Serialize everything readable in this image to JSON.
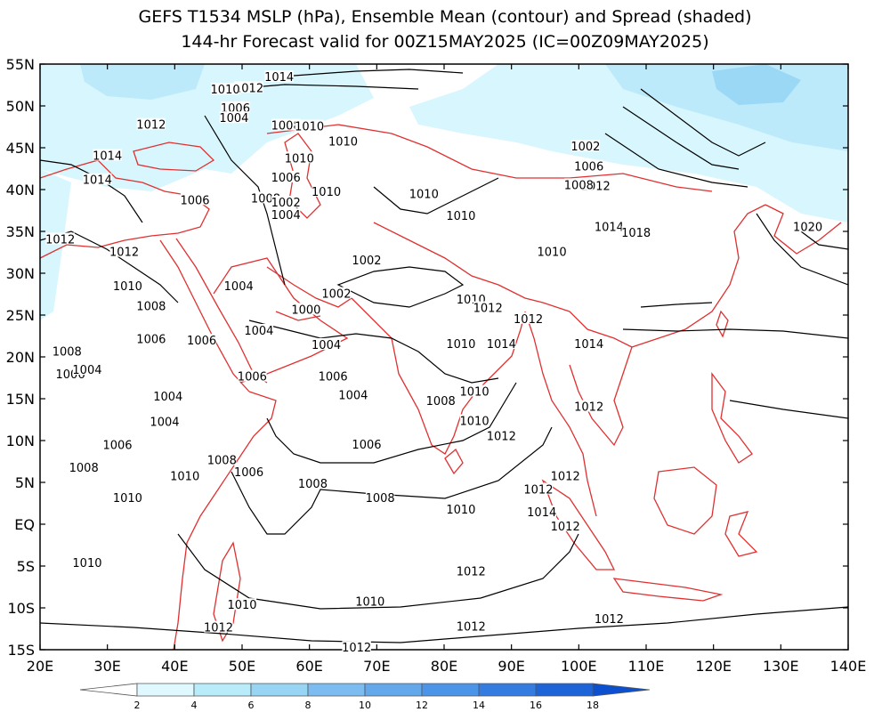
{
  "title_line1": "GEFS T1534 MSLP (hPa), Ensemble Mean (contour) and Spread (shaded)",
  "title_line2": "144-hr Forecast valid for 00Z15MAY2025 (IC=00Z09MAY2025)",
  "map": {
    "lon_range": [
      20,
      140
    ],
    "lat_range": [
      -15,
      55
    ],
    "lon_ticks": [
      "20E",
      "30E",
      "40E",
      "50E",
      "60E",
      "70E",
      "80E",
      "90E",
      "100E",
      "110E",
      "120E",
      "130E",
      "140E"
    ],
    "lat_ticks": [
      "55N",
      "50N",
      "45N",
      "40N",
      "35N",
      "30N",
      "25N",
      "20N",
      "15N",
      "10N",
      "5N",
      "EQ",
      "5S",
      "10S",
      "15S"
    ],
    "coastline_color": "#e03030",
    "contour_color": "#000000"
  },
  "colorbar": {
    "labels": [
      "2",
      "4",
      "6",
      "8",
      "10",
      "12",
      "14",
      "16",
      "18"
    ],
    "colors": [
      "#ffffff",
      "#e0f8ff",
      "#b8ecfa",
      "#98d4f4",
      "#7cbcf0",
      "#64a8ec",
      "#4c94e8",
      "#347ce0",
      "#1c64d8",
      "#0c50d0"
    ]
  },
  "contour_labels": [
    {
      "text": "1014",
      "lon": 55.5,
      "lat": 53.5
    },
    {
      "text": "1012",
      "lon": 51,
      "lat": 52.2
    },
    {
      "text": "1010",
      "lon": 47.5,
      "lat": 52
    },
    {
      "text": "1006",
      "lon": 49,
      "lat": 49.8
    },
    {
      "text": "1004",
      "lon": 48.8,
      "lat": 48.6
    },
    {
      "text": "1008",
      "lon": 56.5,
      "lat": 47.7
    },
    {
      "text": "1010",
      "lon": 60,
      "lat": 47.6
    },
    {
      "text": "1010",
      "lon": 58.5,
      "lat": 43.8
    },
    {
      "text": "1006",
      "lon": 56.5,
      "lat": 41.5
    },
    {
      "text": "1010",
      "lon": 65,
      "lat": 45.8
    },
    {
      "text": "1012",
      "lon": 36.5,
      "lat": 47.8
    },
    {
      "text": "1014",
      "lon": 30,
      "lat": 44.1
    },
    {
      "text": "1014",
      "lon": 28.5,
      "lat": 41.2
    },
    {
      "text": "1012",
      "lon": 23,
      "lat": 34.1
    },
    {
      "text": "1012",
      "lon": 32.5,
      "lat": 32.6
    },
    {
      "text": "1010",
      "lon": 33,
      "lat": 28.5
    },
    {
      "text": "1008",
      "lon": 36.5,
      "lat": 26.1
    },
    {
      "text": "1006",
      "lon": 43,
      "lat": 38.8
    },
    {
      "text": "1008",
      "lon": 53.5,
      "lat": 39
    },
    {
      "text": "1002",
      "lon": 56.5,
      "lat": 38.5
    },
    {
      "text": "1004",
      "lon": 56.5,
      "lat": 37
    },
    {
      "text": "1004",
      "lon": 49.5,
      "lat": 28.5
    },
    {
      "text": "1010",
      "lon": 62.5,
      "lat": 39.8
    },
    {
      "text": "1002",
      "lon": 64,
      "lat": 27.6
    },
    {
      "text": "1002",
      "lon": 68.5,
      "lat": 31.6
    },
    {
      "text": "1000",
      "lon": 59.5,
      "lat": 25.7
    },
    {
      "text": "1004",
      "lon": 52.5,
      "lat": 23.2
    },
    {
      "text": "1004",
      "lon": 62.5,
      "lat": 21.5
    },
    {
      "text": "1006",
      "lon": 36.5,
      "lat": 22.2
    },
    {
      "text": "1006",
      "lon": 44,
      "lat": 22
    },
    {
      "text": "1008",
      "lon": 24,
      "lat": 20.7
    },
    {
      "text": "1006",
      "lon": 24.5,
      "lat": 18
    },
    {
      "text": "1004",
      "lon": 27,
      "lat": 18.5
    },
    {
      "text": "1004",
      "lon": 39,
      "lat": 15.3
    },
    {
      "text": "1004",
      "lon": 38.5,
      "lat": 12.3
    },
    {
      "text": "1006",
      "lon": 51.5,
      "lat": 17.7
    },
    {
      "text": "1006",
      "lon": 63.5,
      "lat": 17.7
    },
    {
      "text": "1004",
      "lon": 66.5,
      "lat": 15.5
    },
    {
      "text": "1008",
      "lon": 47,
      "lat": 7.7
    },
    {
      "text": "1006",
      "lon": 51,
      "lat": 6.3
    },
    {
      "text": "1010",
      "lon": 41.5,
      "lat": 5.8
    },
    {
      "text": "1006",
      "lon": 31.5,
      "lat": 9.5
    },
    {
      "text": "1008",
      "lon": 26.5,
      "lat": 6.8
    },
    {
      "text": "1010",
      "lon": 33,
      "lat": 3.2
    },
    {
      "text": "1010",
      "lon": 27,
      "lat": -4.6
    },
    {
      "text": "1006",
      "lon": 68.5,
      "lat": 9.6
    },
    {
      "text": "1008",
      "lon": 60.5,
      "lat": 4.9
    },
    {
      "text": "1008",
      "lon": 70.5,
      "lat": 3.2
    },
    {
      "text": "1010",
      "lon": 50,
      "lat": -9.6
    },
    {
      "text": "1010",
      "lon": 69,
      "lat": -9.2
    },
    {
      "text": "1012",
      "lon": 46.5,
      "lat": -12.3
    },
    {
      "text": "1012",
      "lon": 67,
      "lat": -14.7
    },
    {
      "text": "1012",
      "lon": 84,
      "lat": -12.2
    },
    {
      "text": "1012",
      "lon": 84,
      "lat": -5.6
    },
    {
      "text": "1010",
      "lon": 82.5,
      "lat": 1.8
    },
    {
      "text": "1008",
      "lon": 79.5,
      "lat": 14.8
    },
    {
      "text": "1010",
      "lon": 84.5,
      "lat": 12.4
    },
    {
      "text": "1010",
      "lon": 84.5,
      "lat": 15.9
    },
    {
      "text": "1010",
      "lon": 82.5,
      "lat": 21.6
    },
    {
      "text": "1014",
      "lon": 88.5,
      "lat": 21.6
    },
    {
      "text": "1012",
      "lon": 92.5,
      "lat": 24.6
    },
    {
      "text": "1012",
      "lon": 88.5,
      "lat": 10.6
    },
    {
      "text": "1012",
      "lon": 94,
      "lat": 4.2
    },
    {
      "text": "1014",
      "lon": 94.5,
      "lat": 1.5
    },
    {
      "text": "1012",
      "lon": 98,
      "lat": -0.2
    },
    {
      "text": "1012",
      "lon": 98,
      "lat": 5.8
    },
    {
      "text": "1012",
      "lon": 101.5,
      "lat": 14.1
    },
    {
      "text": "1014",
      "lon": 101.5,
      "lat": 21.6
    },
    {
      "text": "1010",
      "lon": 96,
      "lat": 32.6
    },
    {
      "text": "1012",
      "lon": 104.5,
      "lat": -11.3
    },
    {
      "text": "1014",
      "lon": 104.5,
      "lat": 35.6
    },
    {
      "text": "1018",
      "lon": 108.5,
      "lat": 34.9
    },
    {
      "text": "1020",
      "lon": 134,
      "lat": 35.6
    },
    {
      "text": "1012",
      "lon": 102.5,
      "lat": 40.5
    },
    {
      "text": "1008",
      "lon": 100,
      "lat": 40.6
    },
    {
      "text": "1006",
      "lon": 101.5,
      "lat": 42.8
    },
    {
      "text": "1002",
      "lon": 101,
      "lat": 45.2
    },
    {
      "text": "1010",
      "lon": 77,
      "lat": 39.5
    },
    {
      "text": "1010",
      "lon": 82.5,
      "lat": 36.9
    },
    {
      "text": "1010",
      "lon": 84,
      "lat": 26.9
    },
    {
      "text": "1012",
      "lon": 86.5,
      "lat": 25.9
    }
  ]
}
